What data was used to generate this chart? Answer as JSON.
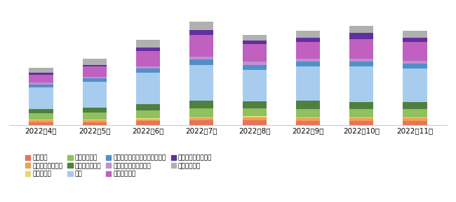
{
  "months": [
    "2022年4月",
    "2022年5月",
    "2022年6月",
    "2022年7月",
    "2022年8月",
    "2022年9月",
    "2022年10月",
    "2022年11月"
  ],
  "categories": [
    "オフィス",
    "医療・介護・福祉",
    "廃棄物処理",
    "ホテル・旅館",
    "清掃・ビル管理",
    "製造",
    "語学・教育・インストラクター",
    "販売・接客・サービス",
    "軽作業・物流",
    "運輸・輸送サービス",
    "飲食・フード"
  ],
  "colors": [
    "#E8735A",
    "#F0A050",
    "#E8D870",
    "#90C060",
    "#508040",
    "#A8CCEE",
    "#5090C8",
    "#C090D0",
    "#C060C0",
    "#6030A0",
    "#B0B0B0"
  ],
  "data": {
    "オフィス": [
      3,
      3,
      4,
      5,
      5,
      4,
      4,
      4
    ],
    "医療・介護・福祉": [
      2,
      2,
      2,
      2,
      3,
      3,
      3,
      3
    ],
    "廃棄物処理": [
      1,
      1,
      1,
      1,
      1,
      1,
      1,
      1
    ],
    "ホテル・旅館": [
      6,
      7,
      8,
      9,
      8,
      8,
      8,
      8
    ],
    "清掃・ビル管理": [
      4,
      5,
      6,
      8,
      7,
      9,
      7,
      7
    ],
    "製造": [
      22,
      26,
      32,
      36,
      32,
      34,
      36,
      34
    ],
    "語学・教育・インストラクター": [
      3,
      3,
      4,
      5,
      5,
      5,
      5,
      5
    ],
    "販売・接客・サービス": [
      2,
      2,
      2,
      3,
      3,
      3,
      3,
      3
    ],
    "軽作業・物流": [
      8,
      10,
      16,
      22,
      18,
      17,
      20,
      19
    ],
    "運輸・輸送サービス": [
      2,
      2,
      3,
      5,
      3,
      4,
      6,
      4
    ],
    "飲食・フード": [
      5,
      6,
      8,
      8,
      6,
      7,
      7,
      7
    ]
  },
  "background_color": "#ffffff",
  "grid_color": "#e8e8e8",
  "bar_width": 0.45,
  "figsize": [
    6.5,
    2.89
  ],
  "dpi": 100,
  "legend_fontsize": 6.5,
  "tick_fontsize": 7.5,
  "ylim": [
    0,
    120
  ]
}
